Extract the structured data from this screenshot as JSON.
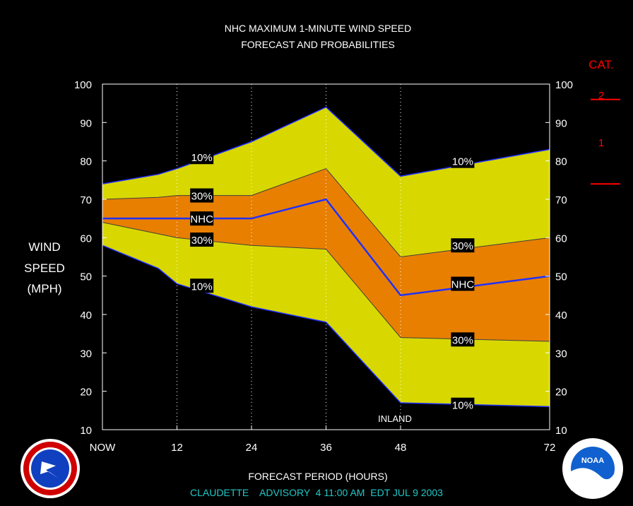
{
  "title": {
    "line1": "NHC MAXIMUM 1-MINUTE WIND SPEED",
    "line2": "FORECAST AND PROBABILITIES"
  },
  "ylabel": [
    "WIND",
    "SPEED",
    "(MPH)"
  ],
  "xlabel": "FORECAST PERIOD (HOURS)",
  "footer": "CLAUDETTE    ADVISORY  4 11:00 AM  EDT JUL 9 2003",
  "inland_label": "INLAND",
  "category": {
    "title": "CAT.",
    "levels": [
      "2",
      "1"
    ]
  },
  "colors": {
    "background": "#000000",
    "outer_band": "#d8d800",
    "inner_band": "#e87f00",
    "nhc_line": "#2030ff",
    "category_marks": "#ff0000",
    "footer_text": "#20c8c8"
  },
  "chart_data": {
    "type": "area",
    "x_tick_labels": [
      "NOW",
      "12",
      "24",
      "36",
      "48",
      "72"
    ],
    "x_ticks": [
      0,
      12,
      24,
      36,
      48,
      72
    ],
    "xlim": [
      0,
      72
    ],
    "ylim": [
      10,
      100
    ],
    "y_ticks": [
      10,
      20,
      30,
      40,
      50,
      60,
      70,
      80,
      90,
      100
    ],
    "gridlines": "dotted vertical at forecast hours",
    "category_thresholds": [
      74,
      96
    ],
    "series": [
      {
        "name": "10%",
        "role": "upper",
        "x": [
          0,
          9,
          12,
          24,
          36,
          48,
          72
        ],
        "values": [
          74,
          76.5,
          78,
          85,
          94,
          76,
          83
        ]
      },
      {
        "name": "30%",
        "role": "upper",
        "x": [
          0,
          9,
          12,
          24,
          36,
          48,
          72
        ],
        "values": [
          70,
          70.5,
          71,
          71,
          78,
          55,
          60
        ]
      },
      {
        "name": "NHC",
        "role": "forecast",
        "x": [
          0,
          12,
          24,
          36,
          48,
          72
        ],
        "values": [
          65,
          65,
          65,
          70,
          45,
          50
        ]
      },
      {
        "name": "30%",
        "role": "lower",
        "x": [
          0,
          12,
          24,
          36,
          48,
          72
        ],
        "values": [
          64,
          60,
          58,
          57,
          34,
          33
        ]
      },
      {
        "name": "10%",
        "role": "lower",
        "x": [
          0,
          9,
          12,
          24,
          36,
          48,
          72
        ],
        "values": [
          58,
          52,
          48,
          42,
          38,
          17,
          16
        ]
      }
    ],
    "annotations": [
      {
        "text": "10%",
        "x": 16,
        "y": 81
      },
      {
        "text": "30%",
        "x": 16,
        "y": 71
      },
      {
        "text": "NHC",
        "x": 16,
        "y": 65
      },
      {
        "text": "30%",
        "x": 16,
        "y": 59.5
      },
      {
        "text": "10%",
        "x": 16,
        "y": 47.5
      },
      {
        "text": "10%",
        "x": 58,
        "y": 80
      },
      {
        "text": "30%",
        "x": 58,
        "y": 58
      },
      {
        "text": "NHC",
        "x": 58,
        "y": 48
      },
      {
        "text": "30%",
        "x": 58,
        "y": 33.5
      },
      {
        "text": "10%",
        "x": 58,
        "y": 16.5
      }
    ]
  }
}
